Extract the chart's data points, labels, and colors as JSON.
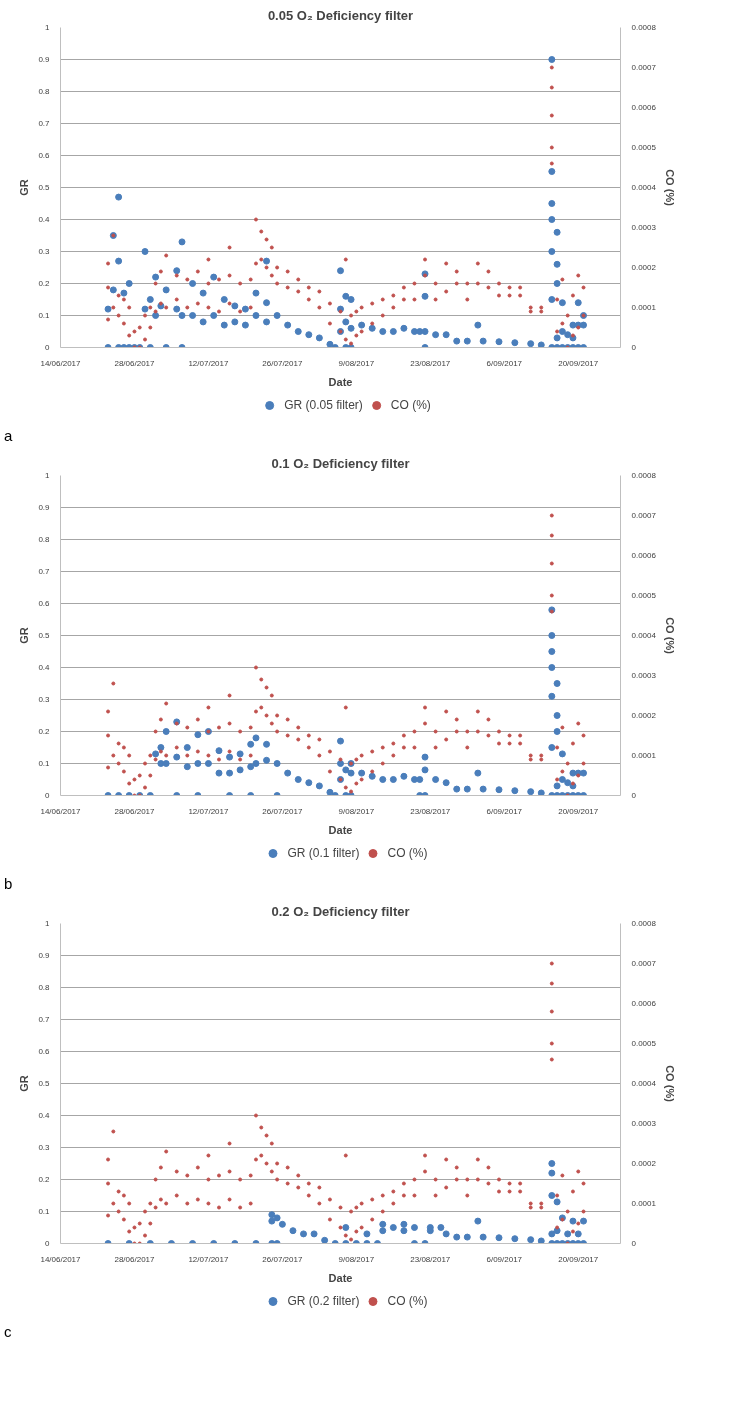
{
  "chart_data": [
    {
      "type": "scatter",
      "title": "0.05 O₂ Deficiency filter",
      "xlabel": "Date",
      "ylabel": "GR",
      "y2label": "CO (%)",
      "annotations": [
        "a"
      ],
      "marker": "circle",
      "grid": "y",
      "legend": "bottom",
      "xlim": [
        "2017-06-14",
        "2017-09-28"
      ],
      "xticks": [
        {
          "value": "2017-06-14",
          "label": "14/06/2017"
        },
        {
          "value": "2017-06-28",
          "label": "28/06/2017"
        },
        {
          "value": "2017-07-12",
          "label": "12/07/2017"
        },
        {
          "value": "2017-07-26",
          "label": "26/07/2017"
        },
        {
          "value": "2017-08-09",
          "label": "9/08/2017"
        },
        {
          "value": "2017-08-23",
          "label": "23/08/2017"
        },
        {
          "value": "2017-09-06",
          "label": "6/09/2017"
        },
        {
          "value": "2017-09-20",
          "label": "20/09/2017"
        }
      ],
      "ylim": [
        0,
        1
      ],
      "yticks": [
        0,
        0.1,
        0.2,
        0.3,
        0.4,
        0.5,
        0.6,
        0.7,
        0.8,
        0.9,
        1
      ],
      "y2lim": [
        0,
        0.0008
      ],
      "y2ticks": [
        0,
        0.0001,
        0.0002,
        0.0003,
        0.0004,
        0.0005,
        0.0006,
        0.0007,
        0.0008
      ],
      "series": [
        {
          "name": "CO (%)",
          "color": "#c0504d",
          "axis": "y2",
          "x": [
            "2017-06-23",
            "2017-06-23",
            "2017-06-23",
            "2017-06-24",
            "2017-06-24",
            "2017-06-25",
            "2017-06-25",
            "2017-06-26",
            "2017-06-26",
            "2017-06-27",
            "2017-06-27",
            "2017-06-28",
            "2017-06-28",
            "2017-06-29",
            "2017-06-29",
            "2017-06-30",
            "2017-06-30",
            "2017-07-01",
            "2017-07-01",
            "2017-07-02",
            "2017-07-02",
            "2017-07-03",
            "2017-07-03",
            "2017-07-04",
            "2017-07-04",
            "2017-07-06",
            "2017-07-06",
            "2017-07-08",
            "2017-07-08",
            "2017-07-10",
            "2017-07-10",
            "2017-07-12",
            "2017-07-12",
            "2017-07-12",
            "2017-07-14",
            "2017-07-14",
            "2017-07-16",
            "2017-07-16",
            "2017-07-16",
            "2017-07-18",
            "2017-07-18",
            "2017-07-20",
            "2017-07-20",
            "2017-07-21",
            "2017-07-21",
            "2017-07-22",
            "2017-07-22",
            "2017-07-23",
            "2017-07-23",
            "2017-07-24",
            "2017-07-24",
            "2017-07-25",
            "2017-07-25",
            "2017-07-27",
            "2017-07-27",
            "2017-07-29",
            "2017-07-29",
            "2017-07-31",
            "2017-07-31",
            "2017-08-02",
            "2017-08-02",
            "2017-08-04",
            "2017-08-04",
            "2017-08-06",
            "2017-08-06",
            "2017-08-07",
            "2017-08-07",
            "2017-08-08",
            "2017-08-08",
            "2017-08-09",
            "2017-08-09",
            "2017-08-10",
            "2017-08-10",
            "2017-08-12",
            "2017-08-12",
            "2017-08-14",
            "2017-08-14",
            "2017-08-16",
            "2017-08-16",
            "2017-08-18",
            "2017-08-18",
            "2017-08-20",
            "2017-08-20",
            "2017-08-22",
            "2017-08-22",
            "2017-08-24",
            "2017-08-24",
            "2017-08-26",
            "2017-08-26",
            "2017-08-28",
            "2017-08-28",
            "2017-08-30",
            "2017-08-30",
            "2017-09-01",
            "2017-09-01",
            "2017-09-03",
            "2017-09-03",
            "2017-09-05",
            "2017-09-05",
            "2017-09-07",
            "2017-09-07",
            "2017-09-09",
            "2017-09-09",
            "2017-09-11",
            "2017-09-11",
            "2017-09-13",
            "2017-09-13",
            "2017-09-15",
            "2017-09-15",
            "2017-09-15",
            "2017-09-15",
            "2017-09-15",
            "2017-09-16",
            "2017-09-16",
            "2017-09-17",
            "2017-09-17",
            "2017-09-18",
            "2017-09-18",
            "2017-09-19",
            "2017-09-19",
            "2017-09-20",
            "2017-09-20",
            "2017-09-21",
            "2017-09-21"
          ],
          "values": [
            7e-05,
            0.00015,
            0.00021,
            0.0001,
            0.00028,
            8e-05,
            0.00013,
            6e-05,
            0.00012,
            3e-05,
            0.0001,
            0,
            4e-05,
            0,
            5e-05,
            2e-05,
            8e-05,
            5e-05,
            0.0001,
            9e-05,
            0.00016,
            0.00011,
            0.00019,
            0.0001,
            0.00023,
            0.00012,
            0.00018,
            0.0001,
            0.00017,
            0.00011,
            0.00019,
            0.0001,
            0.00016,
            0.00022,
            9e-05,
            0.00017,
            0.00011,
            0.00018,
            0.00025,
            9e-05,
            0.00016,
            0.0001,
            0.00017,
            0.00021,
            0.00032,
            0.00022,
            0.00029,
            0.0002,
            0.00027,
            0.00018,
            0.00025,
            0.00016,
            0.0002,
            0.00015,
            0.00019,
            0.00014,
            0.00017,
            0.00012,
            0.00015,
            0.0001,
            0.00014,
            6e-05,
            0.00011,
            4e-05,
            9e-05,
            2e-05,
            0.00022,
            1e-05,
            8e-05,
            3e-05,
            9e-05,
            4e-05,
            0.0001,
            6e-05,
            0.00011,
            8e-05,
            0.00012,
            0.0001,
            0.00013,
            0.00012,
            0.00015,
            0.00012,
            0.00016,
            0.00018,
            0.00022,
            0.00012,
            0.00016,
            0.00014,
            0.00021,
            0.00016,
            0.00019,
            0.00012,
            0.00016,
            0.00016,
            0.00021,
            0.00015,
            0.00019,
            0.00013,
            0.00016,
            0.00013,
            0.00015,
            0.00013,
            0.00015,
            9e-05,
            0.0001,
            9e-05,
            0.0001,
            0.0007,
            0.00065,
            0.00058,
            0.0005,
            0.00046,
            4e-05,
            0.00012,
            6e-05,
            0.00017,
            0,
            8e-05,
            3e-05,
            0.00013,
            5e-05,
            0.00018,
            8e-05,
            0.00015
          ]
        },
        {
          "name": "GR (0.05 filter)",
          "color": "#4a7ebb",
          "x": [
            "2017-06-23",
            "2017-06-23",
            "2017-06-24",
            "2017-06-24",
            "2017-06-25",
            "2017-06-25",
            "2017-06-25",
            "2017-06-26",
            "2017-06-26",
            "2017-06-27",
            "2017-06-27",
            "2017-06-28",
            "2017-06-29",
            "2017-06-30",
            "2017-06-30",
            "2017-07-01",
            "2017-07-01",
            "2017-07-02",
            "2017-07-02",
            "2017-07-03",
            "2017-07-04",
            "2017-07-04",
            "2017-07-06",
            "2017-07-06",
            "2017-07-07",
            "2017-07-07",
            "2017-07-07",
            "2017-07-09",
            "2017-07-09",
            "2017-07-11",
            "2017-07-11",
            "2017-07-13",
            "2017-07-13",
            "2017-07-15",
            "2017-07-15",
            "2017-07-17",
            "2017-07-17",
            "2017-07-19",
            "2017-07-19",
            "2017-07-21",
            "2017-07-21",
            "2017-07-23",
            "2017-07-23",
            "2017-07-23",
            "2017-07-25",
            "2017-07-27",
            "2017-07-29",
            "2017-07-31",
            "2017-08-02",
            "2017-08-04",
            "2017-08-05",
            "2017-08-06",
            "2017-08-06",
            "2017-08-06",
            "2017-08-07",
            "2017-08-07",
            "2017-08-07",
            "2017-08-08",
            "2017-08-08",
            "2017-08-08",
            "2017-08-10",
            "2017-08-12",
            "2017-08-14",
            "2017-08-16",
            "2017-08-18",
            "2017-08-20",
            "2017-08-21",
            "2017-08-22",
            "2017-08-22",
            "2017-08-22",
            "2017-08-22",
            "2017-08-24",
            "2017-08-26",
            "2017-08-28",
            "2017-08-30",
            "2017-09-01",
            "2017-09-02",
            "2017-09-05",
            "2017-09-08",
            "2017-09-11",
            "2017-09-13",
            "2017-09-15",
            "2017-09-15",
            "2017-09-15",
            "2017-09-15",
            "2017-09-15",
            "2017-09-15",
            "2017-09-15",
            "2017-09-16",
            "2017-09-16",
            "2017-09-16",
            "2017-09-16",
            "2017-09-16",
            "2017-09-17",
            "2017-09-17",
            "2017-09-17",
            "2017-09-18",
            "2017-09-18",
            "2017-09-19",
            "2017-09-19",
            "2017-09-19",
            "2017-09-20",
            "2017-09-20",
            "2017-09-20",
            "2017-09-21",
            "2017-09-21",
            "2017-09-21"
          ],
          "values": [
            0,
            0.12,
            0.35,
            0.18,
            0.47,
            0.27,
            0,
            0.17,
            0,
            0.2,
            0,
            0,
            0,
            0.3,
            0.12,
            0.15,
            0,
            0.22,
            0.1,
            0.13,
            0.18,
            0,
            0.24,
            0.12,
            0.33,
            0.1,
            0,
            0.2,
            0.1,
            0.17,
            0.08,
            0.22,
            0.1,
            0.15,
            0.07,
            0.13,
            0.08,
            0.12,
            0.07,
            0.17,
            0.1,
            0.27,
            0.14,
            0.08,
            0.1,
            0.07,
            0.05,
            0.04,
            0.03,
            0.01,
            0,
            0.24,
            0.12,
            0.05,
            0.16,
            0.08,
            0,
            0.15,
            0.06,
            0,
            0.07,
            0.06,
            0.05,
            0.05,
            0.06,
            0.05,
            0.05,
            0.23,
            0.16,
            0.05,
            0,
            0.04,
            0.04,
            0.02,
            0.02,
            0.07,
            0.02,
            0.018,
            0.015,
            0.012,
            0.008,
            0.9,
            0.55,
            0.45,
            0.4,
            0.3,
            0.15,
            0,
            0.36,
            0.26,
            0.2,
            0.03,
            0,
            0.14,
            0.05,
            0,
            0.04,
            0,
            0.07,
            0.03,
            0,
            0.14,
            0.07,
            0,
            0.1,
            0.07,
            0
          ]
        }
      ]
    },
    {
      "type": "scatter",
      "title": "0.1 O₂ Deficiency filter",
      "xlabel": "Date",
      "ylabel": "GR",
      "y2label": "CO (%)",
      "annotations": [
        "b"
      ],
      "marker": "circle",
      "grid": "y",
      "legend": "bottom",
      "xlim": [
        "2017-06-14",
        "2017-09-28"
      ],
      "xticks": [
        {
          "value": "2017-06-14",
          "label": "14/06/2017"
        },
        {
          "value": "2017-06-28",
          "label": "28/06/2017"
        },
        {
          "value": "2017-07-12",
          "label": "12/07/2017"
        },
        {
          "value": "2017-07-26",
          "label": "26/07/2017"
        },
        {
          "value": "2017-08-09",
          "label": "9/08/2017"
        },
        {
          "value": "2017-08-23",
          "label": "23/08/2017"
        },
        {
          "value": "2017-09-06",
          "label": "6/09/2017"
        },
        {
          "value": "2017-09-20",
          "label": "20/09/2017"
        }
      ],
      "ylim": [
        0,
        1
      ],
      "yticks": [
        0,
        0.1,
        0.2,
        0.3,
        0.4,
        0.5,
        0.6,
        0.7,
        0.8,
        0.9,
        1
      ],
      "y2lim": [
        0,
        0.0008
      ],
      "y2ticks": [
        0,
        0.0001,
        0.0002,
        0.0003,
        0.0004,
        0.0005,
        0.0006,
        0.0007,
        0.0008
      ],
      "series": [
        {
          "name": "CO (%)",
          "color": "#c0504d",
          "axis": "y2",
          "x": [
            "2017-06-23",
            "2017-06-23",
            "2017-06-23",
            "2017-06-24",
            "2017-06-24",
            "2017-06-25",
            "2017-06-25",
            "2017-06-26",
            "2017-06-26",
            "2017-06-27",
            "2017-06-27",
            "2017-06-28",
            "2017-06-28",
            "2017-06-29",
            "2017-06-29",
            "2017-06-30",
            "2017-06-30",
            "2017-07-01",
            "2017-07-01",
            "2017-07-02",
            "2017-07-02",
            "2017-07-03",
            "2017-07-03",
            "2017-07-04",
            "2017-07-04",
            "2017-07-06",
            "2017-07-06",
            "2017-07-08",
            "2017-07-08",
            "2017-07-10",
            "2017-07-10",
            "2017-07-12",
            "2017-07-12",
            "2017-07-12",
            "2017-07-14",
            "2017-07-14",
            "2017-07-16",
            "2017-07-16",
            "2017-07-16",
            "2017-07-18",
            "2017-07-18",
            "2017-07-20",
            "2017-07-20",
            "2017-07-21",
            "2017-07-21",
            "2017-07-22",
            "2017-07-22",
            "2017-07-23",
            "2017-07-23",
            "2017-07-24",
            "2017-07-24",
            "2017-07-25",
            "2017-07-25",
            "2017-07-27",
            "2017-07-27",
            "2017-07-29",
            "2017-07-29",
            "2017-07-31",
            "2017-07-31",
            "2017-08-02",
            "2017-08-02",
            "2017-08-04",
            "2017-08-04",
            "2017-08-06",
            "2017-08-06",
            "2017-08-07",
            "2017-08-07",
            "2017-08-08",
            "2017-08-08",
            "2017-08-09",
            "2017-08-09",
            "2017-08-10",
            "2017-08-10",
            "2017-08-12",
            "2017-08-12",
            "2017-08-14",
            "2017-08-14",
            "2017-08-16",
            "2017-08-16",
            "2017-08-18",
            "2017-08-18",
            "2017-08-20",
            "2017-08-20",
            "2017-08-22",
            "2017-08-22",
            "2017-08-24",
            "2017-08-24",
            "2017-08-26",
            "2017-08-26",
            "2017-08-28",
            "2017-08-28",
            "2017-08-30",
            "2017-08-30",
            "2017-09-01",
            "2017-09-01",
            "2017-09-03",
            "2017-09-03",
            "2017-09-05",
            "2017-09-05",
            "2017-09-07",
            "2017-09-07",
            "2017-09-09",
            "2017-09-09",
            "2017-09-11",
            "2017-09-11",
            "2017-09-13",
            "2017-09-13",
            "2017-09-15",
            "2017-09-15",
            "2017-09-15",
            "2017-09-15",
            "2017-09-15",
            "2017-09-16",
            "2017-09-16",
            "2017-09-17",
            "2017-09-17",
            "2017-09-18",
            "2017-09-18",
            "2017-09-19",
            "2017-09-19",
            "2017-09-20",
            "2017-09-20",
            "2017-09-21",
            "2017-09-21"
          ],
          "values": [
            7e-05,
            0.00015,
            0.00021,
            0.0001,
            0.00028,
            8e-05,
            0.00013,
            6e-05,
            0.00012,
            3e-05,
            0.0001,
            0,
            4e-05,
            0,
            5e-05,
            2e-05,
            8e-05,
            5e-05,
            0.0001,
            9e-05,
            0.00016,
            0.00011,
            0.00019,
            0.0001,
            0.00023,
            0.00012,
            0.00018,
            0.0001,
            0.00017,
            0.00011,
            0.00019,
            0.0001,
            0.00016,
            0.00022,
            9e-05,
            0.00017,
            0.00011,
            0.00018,
            0.00025,
            9e-05,
            0.00016,
            0.0001,
            0.00017,
            0.00021,
            0.00032,
            0.00022,
            0.00029,
            0.0002,
            0.00027,
            0.00018,
            0.00025,
            0.00016,
            0.0002,
            0.00015,
            0.00019,
            0.00014,
            0.00017,
            0.00012,
            0.00015,
            0.0001,
            0.00014,
            6e-05,
            0.00011,
            4e-05,
            9e-05,
            2e-05,
            0.00022,
            1e-05,
            8e-05,
            3e-05,
            9e-05,
            4e-05,
            0.0001,
            6e-05,
            0.00011,
            8e-05,
            0.00012,
            0.0001,
            0.00013,
            0.00012,
            0.00015,
            0.00012,
            0.00016,
            0.00018,
            0.00022,
            0.00012,
            0.00016,
            0.00014,
            0.00021,
            0.00016,
            0.00019,
            0.00012,
            0.00016,
            0.00016,
            0.00021,
            0.00015,
            0.00019,
            0.00013,
            0.00016,
            0.00013,
            0.00015,
            0.00013,
            0.00015,
            9e-05,
            0.0001,
            9e-05,
            0.0001,
            0.0007,
            0.00065,
            0.00058,
            0.0005,
            0.00046,
            4e-05,
            0.00012,
            6e-05,
            0.00017,
            0,
            8e-05,
            3e-05,
            0.00013,
            5e-05,
            0.00018,
            8e-05,
            0.00015
          ]
        },
        {
          "name": "GR (0.1 filter)",
          "color": "#4a7ebb",
          "x": [
            "2017-06-23",
            "2017-06-25",
            "2017-06-27",
            "2017-06-29",
            "2017-07-01",
            "2017-07-02",
            "2017-07-03",
            "2017-07-03",
            "2017-07-04",
            "2017-07-04",
            "2017-07-06",
            "2017-07-06",
            "2017-07-06",
            "2017-07-08",
            "2017-07-08",
            "2017-07-10",
            "2017-07-10",
            "2017-07-10",
            "2017-07-12",
            "2017-07-12",
            "2017-07-14",
            "2017-07-14",
            "2017-07-16",
            "2017-07-16",
            "2017-07-16",
            "2017-07-18",
            "2017-07-18",
            "2017-07-20",
            "2017-07-20",
            "2017-07-20",
            "2017-07-21",
            "2017-07-21",
            "2017-07-23",
            "2017-07-23",
            "2017-07-25",
            "2017-07-25",
            "2017-07-27",
            "2017-07-29",
            "2017-07-31",
            "2017-08-02",
            "2017-08-04",
            "2017-08-05",
            "2017-08-06",
            "2017-08-06",
            "2017-08-06",
            "2017-08-07",
            "2017-08-07",
            "2017-08-08",
            "2017-08-08",
            "2017-08-08",
            "2017-08-10",
            "2017-08-12",
            "2017-08-14",
            "2017-08-16",
            "2017-08-18",
            "2017-08-20",
            "2017-08-21",
            "2017-08-21",
            "2017-08-22",
            "2017-08-22",
            "2017-08-22",
            "2017-08-24",
            "2017-08-26",
            "2017-08-28",
            "2017-08-30",
            "2017-09-01",
            "2017-09-02",
            "2017-09-05",
            "2017-09-08",
            "2017-09-11",
            "2017-09-13",
            "2017-09-15",
            "2017-09-15",
            "2017-09-15",
            "2017-09-15",
            "2017-09-15",
            "2017-09-15",
            "2017-09-15",
            "2017-09-16",
            "2017-09-16",
            "2017-09-16",
            "2017-09-16",
            "2017-09-16",
            "2017-09-17",
            "2017-09-17",
            "2017-09-17",
            "2017-09-18",
            "2017-09-18",
            "2017-09-19",
            "2017-09-19",
            "2017-09-19",
            "2017-09-20",
            "2017-09-20",
            "2017-09-21",
            "2017-09-21"
          ],
          "values": [
            0,
            0,
            0,
            0,
            0,
            0.13,
            0.1,
            0.15,
            0.2,
            0.1,
            0.23,
            0.12,
            0,
            0.15,
            0.09,
            0.19,
            0.1,
            0,
            0.2,
            0.1,
            0.14,
            0.07,
            0.12,
            0.07,
            0,
            0.13,
            0.08,
            0.16,
            0.09,
            0,
            0.18,
            0.1,
            0.16,
            0.11,
            0.1,
            0,
            0.07,
            0.05,
            0.04,
            0.03,
            0.01,
            0,
            0.17,
            0.1,
            0.05,
            0.08,
            0,
            0.1,
            0.07,
            0,
            0.07,
            0.06,
            0.05,
            0.05,
            0.06,
            0.05,
            0.05,
            0,
            0.12,
            0.08,
            0,
            0.05,
            0.04,
            0.02,
            0.02,
            0.07,
            0.02,
            0.018,
            0.015,
            0.012,
            0.008,
            0.58,
            0.5,
            0.45,
            0.4,
            0.31,
            0.15,
            0,
            0.35,
            0.25,
            0.2,
            0.03,
            0,
            0.13,
            0.05,
            0,
            0.04,
            0,
            0.07,
            0.03,
            0,
            0.07,
            0,
            0.07,
            0
          ]
        }
      ]
    },
    {
      "type": "scatter",
      "title": "0.2 O₂ Deficiency filter",
      "xlabel": "Date",
      "ylabel": "GR",
      "y2label": "CO (%)",
      "annotations": [
        "c"
      ],
      "marker": "circle",
      "grid": "y",
      "legend": "bottom",
      "xlim": [
        "2017-06-14",
        "2017-09-28"
      ],
      "xticks": [
        {
          "value": "2017-06-14",
          "label": "14/06/2017"
        },
        {
          "value": "2017-06-28",
          "label": "28/06/2017"
        },
        {
          "value": "2017-07-12",
          "label": "12/07/2017"
        },
        {
          "value": "2017-07-26",
          "label": "26/07/2017"
        },
        {
          "value": "2017-08-09",
          "label": "9/08/2017"
        },
        {
          "value": "2017-08-23",
          "label": "23/08/2017"
        },
        {
          "value": "2017-09-06",
          "label": "6/09/2017"
        },
        {
          "value": "2017-09-20",
          "label": "20/09/2017"
        }
      ],
      "ylim": [
        0,
        1
      ],
      "yticks": [
        0,
        0.1,
        0.2,
        0.3,
        0.4,
        0.5,
        0.6,
        0.7,
        0.8,
        0.9,
        1
      ],
      "y2lim": [
        0,
        0.0008
      ],
      "y2ticks": [
        0,
        0.0001,
        0.0002,
        0.0003,
        0.0004,
        0.0005,
        0.0006,
        0.0007,
        0.0008
      ],
      "series": [
        {
          "name": "CO (%)",
          "color": "#c0504d",
          "axis": "y2",
          "x": [
            "2017-06-23",
            "2017-06-23",
            "2017-06-23",
            "2017-06-24",
            "2017-06-24",
            "2017-06-25",
            "2017-06-25",
            "2017-06-26",
            "2017-06-26",
            "2017-06-27",
            "2017-06-27",
            "2017-06-28",
            "2017-06-28",
            "2017-06-29",
            "2017-06-29",
            "2017-06-30",
            "2017-06-30",
            "2017-07-01",
            "2017-07-01",
            "2017-07-02",
            "2017-07-02",
            "2017-07-03",
            "2017-07-03",
            "2017-07-04",
            "2017-07-04",
            "2017-07-06",
            "2017-07-06",
            "2017-07-08",
            "2017-07-08",
            "2017-07-10",
            "2017-07-10",
            "2017-07-12",
            "2017-07-12",
            "2017-07-12",
            "2017-07-14",
            "2017-07-14",
            "2017-07-16",
            "2017-07-16",
            "2017-07-16",
            "2017-07-18",
            "2017-07-18",
            "2017-07-20",
            "2017-07-20",
            "2017-07-21",
            "2017-07-21",
            "2017-07-22",
            "2017-07-22",
            "2017-07-23",
            "2017-07-23",
            "2017-07-24",
            "2017-07-24",
            "2017-07-25",
            "2017-07-25",
            "2017-07-27",
            "2017-07-27",
            "2017-07-29",
            "2017-07-29",
            "2017-07-31",
            "2017-07-31",
            "2017-08-02",
            "2017-08-02",
            "2017-08-04",
            "2017-08-04",
            "2017-08-06",
            "2017-08-06",
            "2017-08-07",
            "2017-08-07",
            "2017-08-08",
            "2017-08-08",
            "2017-08-09",
            "2017-08-09",
            "2017-08-10",
            "2017-08-10",
            "2017-08-12",
            "2017-08-12",
            "2017-08-14",
            "2017-08-14",
            "2017-08-16",
            "2017-08-16",
            "2017-08-18",
            "2017-08-18",
            "2017-08-20",
            "2017-08-20",
            "2017-08-22",
            "2017-08-22",
            "2017-08-24",
            "2017-08-24",
            "2017-08-26",
            "2017-08-26",
            "2017-08-28",
            "2017-08-28",
            "2017-08-30",
            "2017-08-30",
            "2017-09-01",
            "2017-09-01",
            "2017-09-03",
            "2017-09-03",
            "2017-09-05",
            "2017-09-05",
            "2017-09-07",
            "2017-09-07",
            "2017-09-09",
            "2017-09-09",
            "2017-09-11",
            "2017-09-11",
            "2017-09-13",
            "2017-09-13",
            "2017-09-15",
            "2017-09-15",
            "2017-09-15",
            "2017-09-15",
            "2017-09-15",
            "2017-09-16",
            "2017-09-16",
            "2017-09-17",
            "2017-09-17",
            "2017-09-18",
            "2017-09-18",
            "2017-09-19",
            "2017-09-19",
            "2017-09-20",
            "2017-09-20",
            "2017-09-21",
            "2017-09-21"
          ],
          "values": [
            7e-05,
            0.00015,
            0.00021,
            0.0001,
            0.00028,
            8e-05,
            0.00013,
            6e-05,
            0.00012,
            3e-05,
            0.0001,
            0,
            4e-05,
            0,
            5e-05,
            2e-05,
            8e-05,
            5e-05,
            0.0001,
            9e-05,
            0.00016,
            0.00011,
            0.00019,
            0.0001,
            0.00023,
            0.00012,
            0.00018,
            0.0001,
            0.00017,
            0.00011,
            0.00019,
            0.0001,
            0.00016,
            0.00022,
            9e-05,
            0.00017,
            0.00011,
            0.00018,
            0.00025,
            9e-05,
            0.00016,
            0.0001,
            0.00017,
            0.00021,
            0.00032,
            0.00022,
            0.00029,
            0.0002,
            0.00027,
            0.00018,
            0.00025,
            0.00016,
            0.0002,
            0.00015,
            0.00019,
            0.00014,
            0.00017,
            0.00012,
            0.00015,
            0.0001,
            0.00014,
            6e-05,
            0.00011,
            4e-05,
            9e-05,
            2e-05,
            0.00022,
            1e-05,
            8e-05,
            3e-05,
            9e-05,
            4e-05,
            0.0001,
            6e-05,
            0.00011,
            8e-05,
            0.00012,
            0.0001,
            0.00013,
            0.00012,
            0.00015,
            0.00012,
            0.00016,
            0.00018,
            0.00022,
            0.00012,
            0.00016,
            0.00014,
            0.00021,
            0.00016,
            0.00019,
            0.00012,
            0.00016,
            0.00016,
            0.00021,
            0.00015,
            0.00019,
            0.00013,
            0.00016,
            0.00013,
            0.00015,
            0.00013,
            0.00015,
            9e-05,
            0.0001,
            9e-05,
            0.0001,
            0.0007,
            0.00065,
            0.00058,
            0.0005,
            0.00046,
            4e-05,
            0.00012,
            6e-05,
            0.00017,
            0,
            8e-05,
            3e-05,
            0.00013,
            5e-05,
            0.00018,
            8e-05,
            0.00015
          ]
        },
        {
          "name": "GR (0.2 filter)",
          "color": "#4a7ebb",
          "x": [
            "2017-06-23",
            "2017-06-27",
            "2017-07-01",
            "2017-07-05",
            "2017-07-09",
            "2017-07-13",
            "2017-07-17",
            "2017-07-21",
            "2017-07-24",
            "2017-07-24",
            "2017-07-24",
            "2017-07-25",
            "2017-07-25",
            "2017-07-26",
            "2017-07-28",
            "2017-07-30",
            "2017-08-01",
            "2017-08-03",
            "2017-08-05",
            "2017-08-07",
            "2017-08-07",
            "2017-08-09",
            "2017-08-11",
            "2017-08-11",
            "2017-08-13",
            "2017-08-14",
            "2017-08-14",
            "2017-08-16",
            "2017-08-18",
            "2017-08-18",
            "2017-08-20",
            "2017-08-20",
            "2017-08-22",
            "2017-08-23",
            "2017-08-23",
            "2017-08-25",
            "2017-08-26",
            "2017-08-28",
            "2017-08-30",
            "2017-09-01",
            "2017-09-02",
            "2017-09-05",
            "2017-09-08",
            "2017-09-11",
            "2017-09-13",
            "2017-09-15",
            "2017-09-15",
            "2017-09-15",
            "2017-09-15",
            "2017-09-15",
            "2017-09-16",
            "2017-09-16",
            "2017-09-16",
            "2017-09-17",
            "2017-09-17",
            "2017-09-18",
            "2017-09-18",
            "2017-09-19",
            "2017-09-19",
            "2017-09-20",
            "2017-09-20",
            "2017-09-21",
            "2017-09-21"
          ],
          "values": [
            0,
            0,
            0,
            0,
            0,
            0,
            0,
            0,
            0.09,
            0.07,
            0,
            0.08,
            0,
            0.06,
            0.04,
            0.03,
            0.03,
            0.01,
            0,
            0.05,
            0,
            0,
            0.03,
            0,
            0,
            0.06,
            0.04,
            0.05,
            0.06,
            0.04,
            0.05,
            0,
            0,
            0.05,
            0.04,
            0.05,
            0.03,
            0.02,
            0.02,
            0.07,
            0.02,
            0.018,
            0.015,
            0.012,
            0.008,
            0.25,
            0.22,
            0.15,
            0.03,
            0,
            0.13,
            0.04,
            0,
            0.08,
            0,
            0.03,
            0,
            0.07,
            0,
            0.03,
            0,
            0.07,
            0
          ]
        }
      ]
    }
  ]
}
